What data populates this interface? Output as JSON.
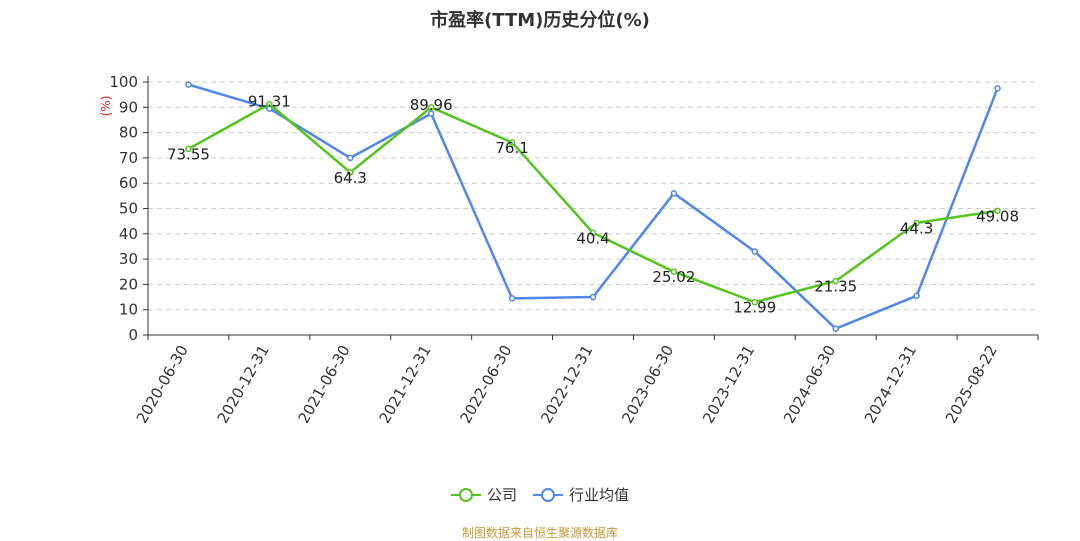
{
  "chart_data": {
    "type": "line",
    "title": "市盈率(TTM)历史分位(%)",
    "ylabel": "(%)",
    "xlabel": "",
    "ylim": [
      0,
      100
    ],
    "yticks": [
      0,
      10,
      20,
      30,
      40,
      50,
      60,
      70,
      80,
      90,
      100
    ],
    "categories": [
      "2020-06-30",
      "2020-12-31",
      "2021-06-30",
      "2021-12-31",
      "2022-06-30",
      "2022-12-31",
      "2023-06-30",
      "2023-12-31",
      "2024-06-30",
      "2024-12-31",
      "2025-08-22"
    ],
    "grid": true,
    "legend_position": "bottom",
    "series": [
      {
        "name": "公司",
        "color": "#52c41a",
        "values": [
          73.55,
          91.31,
          64.3,
          89.96,
          76.1,
          40.4,
          25.02,
          12.99,
          21.35,
          44.3,
          49.08
        ],
        "labels": [
          "73.55",
          "91.31",
          "64.3",
          "89.96",
          "76.1",
          "40.4",
          "25.02",
          "12.99",
          "21.35",
          "44.3",
          "49.08"
        ]
      },
      {
        "name": "行业均值",
        "color": "#5087ec",
        "values": [
          99,
          89.5,
          70,
          87.5,
          14.5,
          15,
          56,
          33,
          2.5,
          15.5,
          97.5
        ]
      }
    ]
  },
  "source_text": "制图数据来自恒生聚源数据库"
}
